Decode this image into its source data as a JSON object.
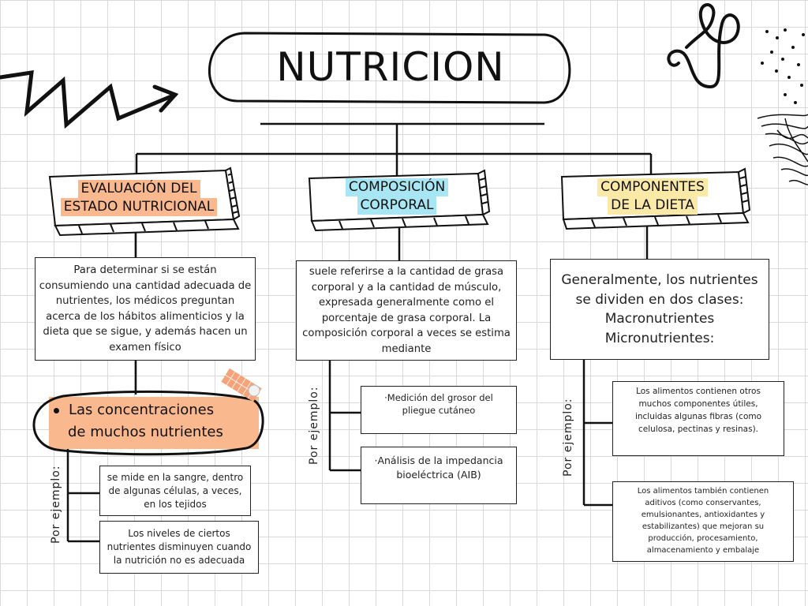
{
  "title": "NUTRICION",
  "colors": {
    "orange": "#f9b88e",
    "cyan": "#a7e6f2",
    "yellow": "#fbe9a8",
    "line": "#111111"
  },
  "columns": [
    {
      "header_line1": "EVALUACIÓN DEL",
      "header_line2": "ESTADO NUTRICIONAL",
      "description": "Para determinar si se están consumiendo una cantidad adecuada de nutrientes, los médicos preguntan acerca de los hábitos alimenticios y la dieta que se sigue, y además hacen un examen físico",
      "highlight_line1": "Las concentraciones",
      "highlight_line2": "de muchos nutrientes",
      "example_label": "Por ejemplo:",
      "examples": [
        "se mide en la sangre, dentro de algunas células, a veces, en los tejidos",
        "Los niveles de ciertos nutrientes disminuyen cuando la nutrición no es adecuada"
      ]
    },
    {
      "header_line1": "COMPOSICIÓN",
      "header_line2": "CORPORAL",
      "description": "suele referirse a la cantidad de grasa corporal y a la cantidad de músculo, expresada generalmente como el porcentaje de grasa corporal. La composición corporal a veces se estima mediante",
      "example_label": "Por ejemplo:",
      "examples": [
        "·Medición del grosor del pliegue cutáneo",
        "·Análisis de la impedancia bioeléctrica (AIB)"
      ]
    },
    {
      "header_line1": "COMPONENTES",
      "header_line2": "DE LA DIETA",
      "description_line1": "Generalmente, los nutrientes",
      "description_line2": "se dividen en dos clases:",
      "description_line3": "Macronutrientes",
      "description_line4": "Micronutrientes:",
      "example_label": "Por ejemplo:",
      "examples": [
        "Los alimentos contienen otros muchos componentes útiles, incluidas algunas fibras (como celulosa, pectinas y resinas).",
        "Los alimentos también contienen aditivos (como conservantes, emulsionantes, antioxidantes y estabilizantes) que mejoran su producción, procesamiento, almacenamiento y embalaje"
      ]
    }
  ]
}
